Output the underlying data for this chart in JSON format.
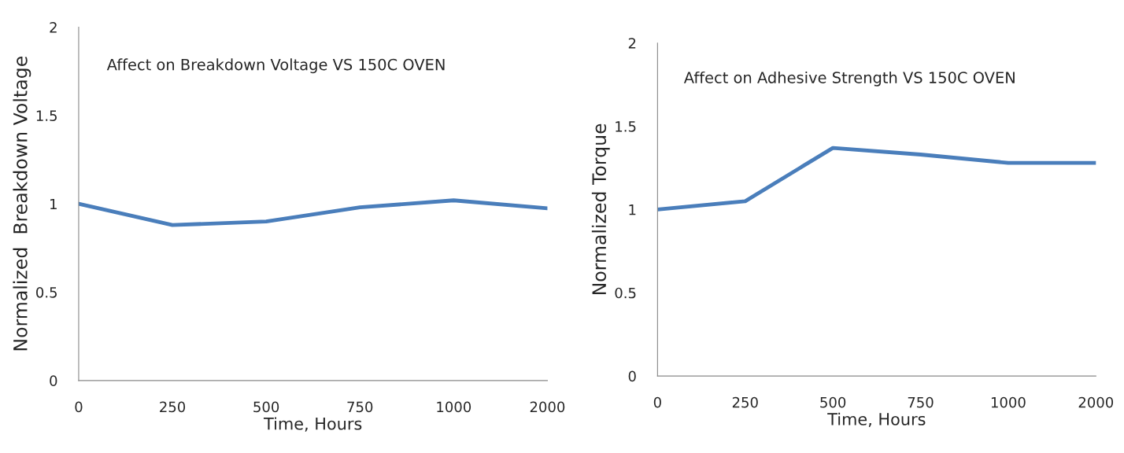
{
  "chart_data": [
    {
      "type": "line",
      "title": "Affect on Breakdown Voltage VS 150C OVEN",
      "xlabel": "Time, Hours",
      "ylabel": "Normalized  Breakdown Voltage",
      "categories": [
        "0",
        "250",
        "500",
        "750",
        "1000",
        "2000"
      ],
      "values": [
        1.0,
        0.88,
        0.9,
        0.98,
        1.02,
        0.975
      ],
      "color": "#4a7ebb",
      "ylim": [
        0,
        2
      ],
      "yticks": [
        0,
        0.5,
        1,
        1.5,
        2
      ],
      "grid": false,
      "legend": false,
      "marker": "none"
    },
    {
      "type": "line",
      "title": "Affect on Adhesive Strength VS 150C OVEN",
      "xlabel": "Time, Hours",
      "ylabel": "Normalized Torque",
      "categories": [
        "0",
        "250",
        "500",
        "750",
        "1000",
        "2000"
      ],
      "values": [
        1.0,
        1.05,
        1.37,
        1.33,
        1.28,
        1.28
      ],
      "color": "#4a7ebb",
      "ylim": [
        0,
        2
      ],
      "yticks": [
        0,
        0.5,
        1,
        1.5,
        2
      ],
      "grid": false,
      "legend": false,
      "marker": "none"
    }
  ]
}
